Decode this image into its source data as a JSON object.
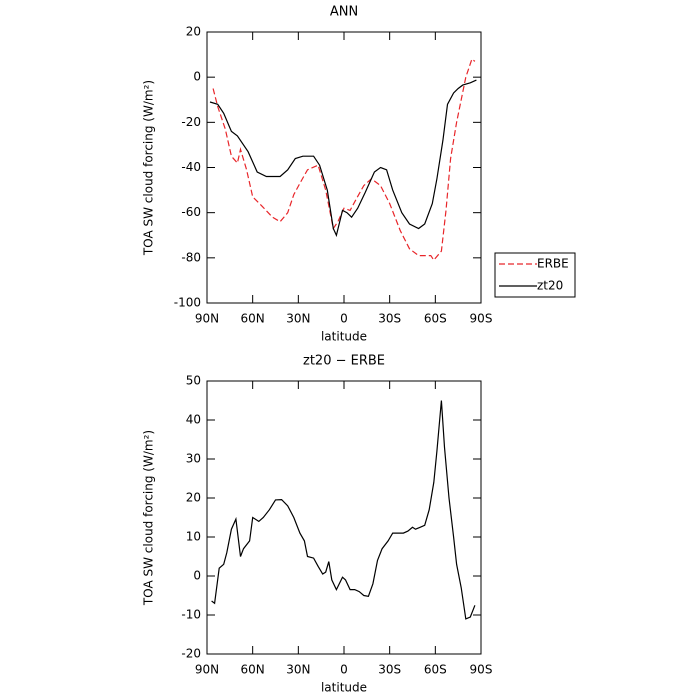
{
  "chart_data": [
    {
      "type": "line",
      "title": "ANN",
      "x_label": "latitude",
      "y_label": "TOA SW cloud forcing (W/m²)",
      "xlim": [
        90,
        -90
      ],
      "xticks": [
        {
          "value": 90,
          "label": "90N"
        },
        {
          "value": 60,
          "label": "60N"
        },
        {
          "value": 30,
          "label": "30N"
        },
        0,
        {
          "value": -30,
          "label": "30S"
        },
        {
          "value": -60,
          "label": "60S"
        },
        {
          "value": -90,
          "label": "90S"
        }
      ],
      "ylim": [
        -100,
        20
      ],
      "yticks": [
        -100,
        -80,
        -60,
        -40,
        -20,
        0,
        20
      ],
      "legend": "outside-right",
      "series": [
        {
          "name": "ERBE",
          "color": "#e8262a",
          "dash": true,
          "x": [
            86,
            83,
            78,
            74,
            70,
            68,
            64,
            60,
            54,
            47,
            42,
            37,
            33,
            29,
            24,
            17,
            12,
            7,
            4,
            0,
            -4,
            -8,
            -13,
            -18,
            -24,
            -30,
            -37,
            -43,
            -49,
            -57,
            -59,
            -64,
            -67,
            -70,
            -74,
            -77,
            -80,
            -84,
            -86
          ],
          "values": [
            -5,
            -13,
            -23,
            -35,
            -38,
            -32,
            -41,
            -53,
            -57,
            -62,
            -64,
            -60,
            -52,
            -47,
            -41,
            -39,
            -50,
            -67,
            -64,
            -58,
            -59,
            -54,
            -48,
            -45,
            -48,
            -56,
            -68,
            -76,
            -79,
            -79,
            -81,
            -77,
            -59,
            -36,
            -20,
            -10,
            0,
            8,
            7
          ]
        },
        {
          "name": "zt20",
          "color": "#000000",
          "dash": false,
          "x": [
            88,
            83,
            79,
            74,
            70,
            63,
            57,
            51,
            42,
            37,
            32,
            27,
            20,
            16,
            11,
            7,
            5,
            1,
            -2,
            -5,
            -9,
            -14,
            -20,
            -24,
            -28,
            -32,
            -38,
            -43,
            -49,
            -53,
            -58,
            -61,
            -65,
            -68,
            -72,
            -75,
            -78,
            -83,
            -87
          ],
          "values": [
            -11,
            -12,
            -16,
            -24,
            -26,
            -33,
            -42,
            -44,
            -44,
            -41,
            -36,
            -35,
            -35,
            -39,
            -50,
            -67,
            -70,
            -59,
            -60,
            -62,
            -58,
            -51,
            -42,
            -40,
            -41,
            -50,
            -60,
            -65,
            -67,
            -65,
            -56,
            -45,
            -28,
            -12,
            -7,
            -5,
            -3.5,
            -2.5,
            -1.3
          ]
        }
      ]
    },
    {
      "type": "line",
      "title": "zt20 − ERBE",
      "x_label": "latitude",
      "y_label": "TOA SW cloud forcing (W/m²)",
      "xlim": [
        90,
        -90
      ],
      "xticks": [
        {
          "value": 90,
          "label": "90N"
        },
        {
          "value": 60,
          "label": "60N"
        },
        {
          "value": 30,
          "label": "30N"
        },
        0,
        {
          "value": -30,
          "label": "30S"
        },
        {
          "value": -60,
          "label": "60S"
        },
        {
          "value": -90,
          "label": "90S"
        }
      ],
      "ylim": [
        -20,
        50
      ],
      "yticks": [
        -20,
        -10,
        0,
        10,
        20,
        30,
        40,
        50
      ],
      "series": [
        {
          "color": "#000000",
          "x": [
            87,
            85,
            82,
            79,
            77,
            74,
            71,
            68,
            66,
            62,
            60,
            56,
            53,
            49,
            45,
            41,
            37,
            33,
            29,
            26,
            24,
            20,
            17,
            14,
            12,
            10,
            8,
            5,
            1,
            -1,
            -4,
            -7,
            -10,
            -13,
            -16,
            -19,
            -22,
            -25,
            -29,
            -32,
            -35,
            -39,
            -42,
            -45,
            -47,
            -50,
            -53,
            -56,
            -59,
            -61,
            -64,
            -66,
            -69,
            -72,
            -74,
            -77,
            -80,
            -83,
            -86
          ],
          "values": [
            -6.4,
            -7,
            2,
            3,
            6,
            12,
            14.6,
            5,
            7,
            9,
            15,
            14,
            15,
            17,
            19.5,
            19.6,
            18,
            15,
            11,
            9,
            5,
            4.6,
            2.5,
            0.5,
            1,
            3.7,
            -1,
            -3.5,
            -0.3,
            -1,
            -3.5,
            -3.5,
            -4,
            -5,
            -5.2,
            -2,
            4,
            7,
            9,
            11,
            11,
            11,
            11.5,
            12.5,
            12,
            12.5,
            13,
            17,
            24,
            32,
            45,
            33,
            20,
            10,
            3,
            -3,
            -11,
            -10.5,
            -7.5
          ]
        }
      ]
    }
  ]
}
